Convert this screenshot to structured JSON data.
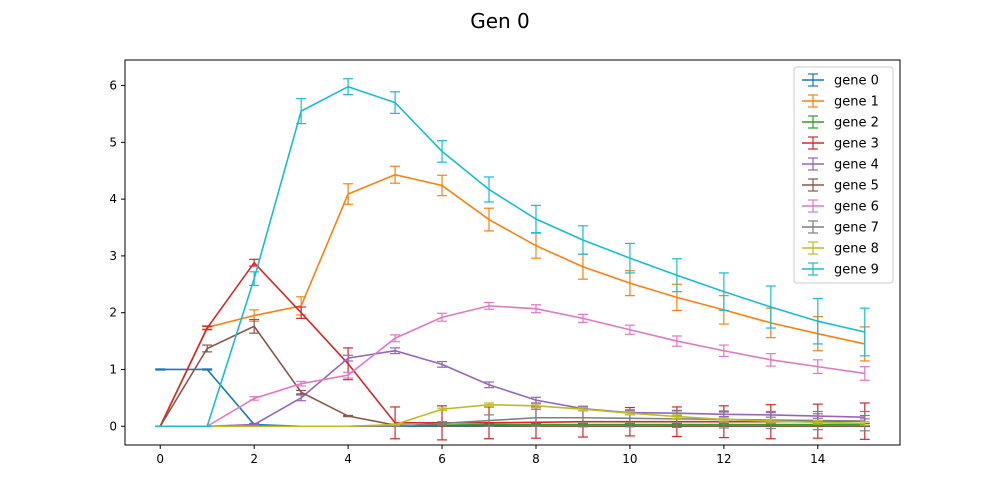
{
  "chart_data": {
    "type": "line",
    "title": "Gen 0",
    "xlabel": "",
    "ylabel": "",
    "xlim": [
      -0.75,
      15.75
    ],
    "ylim": [
      -0.33,
      6.45
    ],
    "xticks": [
      0,
      2,
      4,
      6,
      8,
      10,
      12,
      14
    ],
    "yticks": [
      0,
      1,
      2,
      3,
      4,
      5,
      6
    ],
    "grid": false,
    "legend_position": "top-right",
    "x": [
      0,
      1,
      2,
      3,
      4,
      5,
      6,
      7,
      8,
      9,
      10,
      11,
      12,
      13,
      14,
      15
    ],
    "series": [
      {
        "name": "gene 0",
        "color": "#1f77b4",
        "values": [
          1.0,
          1.0,
          0.03,
          0.0,
          0.0,
          0.0,
          0.0,
          0.0,
          0.0,
          0.0,
          0.0,
          0.0,
          0.0,
          0.0,
          0.0,
          0.0
        ],
        "errors": [
          0.01,
          0.01,
          0.02,
          0.0,
          0.0,
          0.0,
          0.0,
          0.0,
          0.0,
          0.0,
          0.0,
          0.0,
          0.0,
          0.0,
          0.0,
          0.0
        ]
      },
      {
        "name": "gene 1",
        "color": "#ff7f0e",
        "values": [
          0.0,
          1.74,
          1.95,
          2.12,
          4.09,
          4.43,
          4.24,
          3.64,
          3.18,
          2.81,
          2.52,
          2.27,
          2.05,
          1.82,
          1.63,
          1.45
        ],
        "errors": [
          0.0,
          0.03,
          0.1,
          0.16,
          0.18,
          0.15,
          0.18,
          0.2,
          0.22,
          0.22,
          0.22,
          0.23,
          0.25,
          0.26,
          0.3,
          0.3
        ]
      },
      {
        "name": "gene 2",
        "color": "#2ca02c",
        "values": [
          0.0,
          0.0,
          0.0,
          0.0,
          0.0,
          0.02,
          0.02,
          0.03,
          0.03,
          0.03,
          0.03,
          0.03,
          0.03,
          0.03,
          0.03,
          0.03
        ],
        "errors": [
          0.0,
          0.0,
          0.0,
          0.0,
          0.0,
          0.02,
          0.02,
          0.02,
          0.02,
          0.02,
          0.02,
          0.02,
          0.02,
          0.02,
          0.02,
          0.02
        ]
      },
      {
        "name": "gene 3",
        "color": "#d62728",
        "values": [
          0.0,
          1.73,
          2.88,
          2.0,
          1.1,
          0.06,
          0.06,
          0.06,
          0.07,
          0.08,
          0.08,
          0.08,
          0.08,
          0.08,
          0.09,
          0.09
        ],
        "errors": [
          0.0,
          0.03,
          0.06,
          0.1,
          0.28,
          0.28,
          0.3,
          0.28,
          0.28,
          0.27,
          0.25,
          0.26,
          0.28,
          0.3,
          0.3,
          0.32
        ]
      },
      {
        "name": "gene 4",
        "color": "#9467bd",
        "values": [
          0.0,
          0.0,
          0.03,
          0.5,
          1.2,
          1.33,
          1.09,
          0.73,
          0.46,
          0.31,
          0.24,
          0.23,
          0.21,
          0.2,
          0.18,
          0.16
        ],
        "errors": [
          0.0,
          0.0,
          0.01,
          0.05,
          0.05,
          0.05,
          0.05,
          0.05,
          0.05,
          0.04,
          0.04,
          0.04,
          0.04,
          0.04,
          0.04,
          0.03
        ]
      },
      {
        "name": "gene 5",
        "color": "#8c564b",
        "values": [
          0.0,
          1.37,
          1.76,
          0.6,
          0.18,
          0.02,
          0.01,
          0.01,
          0.0,
          0.0,
          0.0,
          0.0,
          0.0,
          0.0,
          0.0,
          0.0
        ],
        "errors": [
          0.0,
          0.06,
          0.12,
          0.03,
          0.01,
          0.01,
          0.01,
          0.01,
          0.0,
          0.0,
          0.0,
          0.0,
          0.0,
          0.0,
          0.0,
          0.0
        ]
      },
      {
        "name": "gene 6",
        "color": "#e377c2",
        "values": [
          0.0,
          0.0,
          0.49,
          0.75,
          0.9,
          1.55,
          1.92,
          2.12,
          2.07,
          1.9,
          1.7,
          1.5,
          1.33,
          1.17,
          1.05,
          0.93
        ],
        "errors": [
          0.0,
          0.0,
          0.03,
          0.04,
          0.05,
          0.06,
          0.07,
          0.06,
          0.07,
          0.07,
          0.08,
          0.09,
          0.1,
          0.11,
          0.12,
          0.12
        ]
      },
      {
        "name": "gene 7",
        "color": "#7f7f7f",
        "values": [
          0.0,
          0.0,
          0.0,
          0.0,
          0.0,
          0.0,
          0.05,
          0.1,
          0.15,
          0.15,
          0.14,
          0.13,
          0.12,
          0.11,
          0.1,
          0.09
        ],
        "errors": [
          0.0,
          0.0,
          0.0,
          0.0,
          0.0,
          0.0,
          0.03,
          0.1,
          0.15,
          0.16,
          0.15,
          0.15,
          0.15,
          0.15,
          0.16,
          0.17
        ]
      },
      {
        "name": "gene 8",
        "color": "#bcbd22",
        "values": [
          0.0,
          0.0,
          0.0,
          0.0,
          0.0,
          0.03,
          0.3,
          0.38,
          0.36,
          0.3,
          0.23,
          0.17,
          0.12,
          0.09,
          0.07,
          0.05
        ],
        "errors": [
          0.0,
          0.0,
          0.0,
          0.0,
          0.0,
          0.01,
          0.02,
          0.03,
          0.03,
          0.03,
          0.03,
          0.03,
          0.03,
          0.03,
          0.03,
          0.03
        ]
      },
      {
        "name": "gene 9",
        "color": "#17becf",
        "values": [
          0.0,
          0.0,
          2.6,
          5.55,
          5.98,
          5.7,
          4.84,
          4.17,
          3.65,
          3.28,
          2.96,
          2.66,
          2.37,
          2.1,
          1.85,
          1.66
        ],
        "errors": [
          0.0,
          0.0,
          0.12,
          0.22,
          0.14,
          0.19,
          0.19,
          0.22,
          0.24,
          0.25,
          0.26,
          0.29,
          0.33,
          0.37,
          0.4,
          0.42
        ]
      }
    ]
  }
}
